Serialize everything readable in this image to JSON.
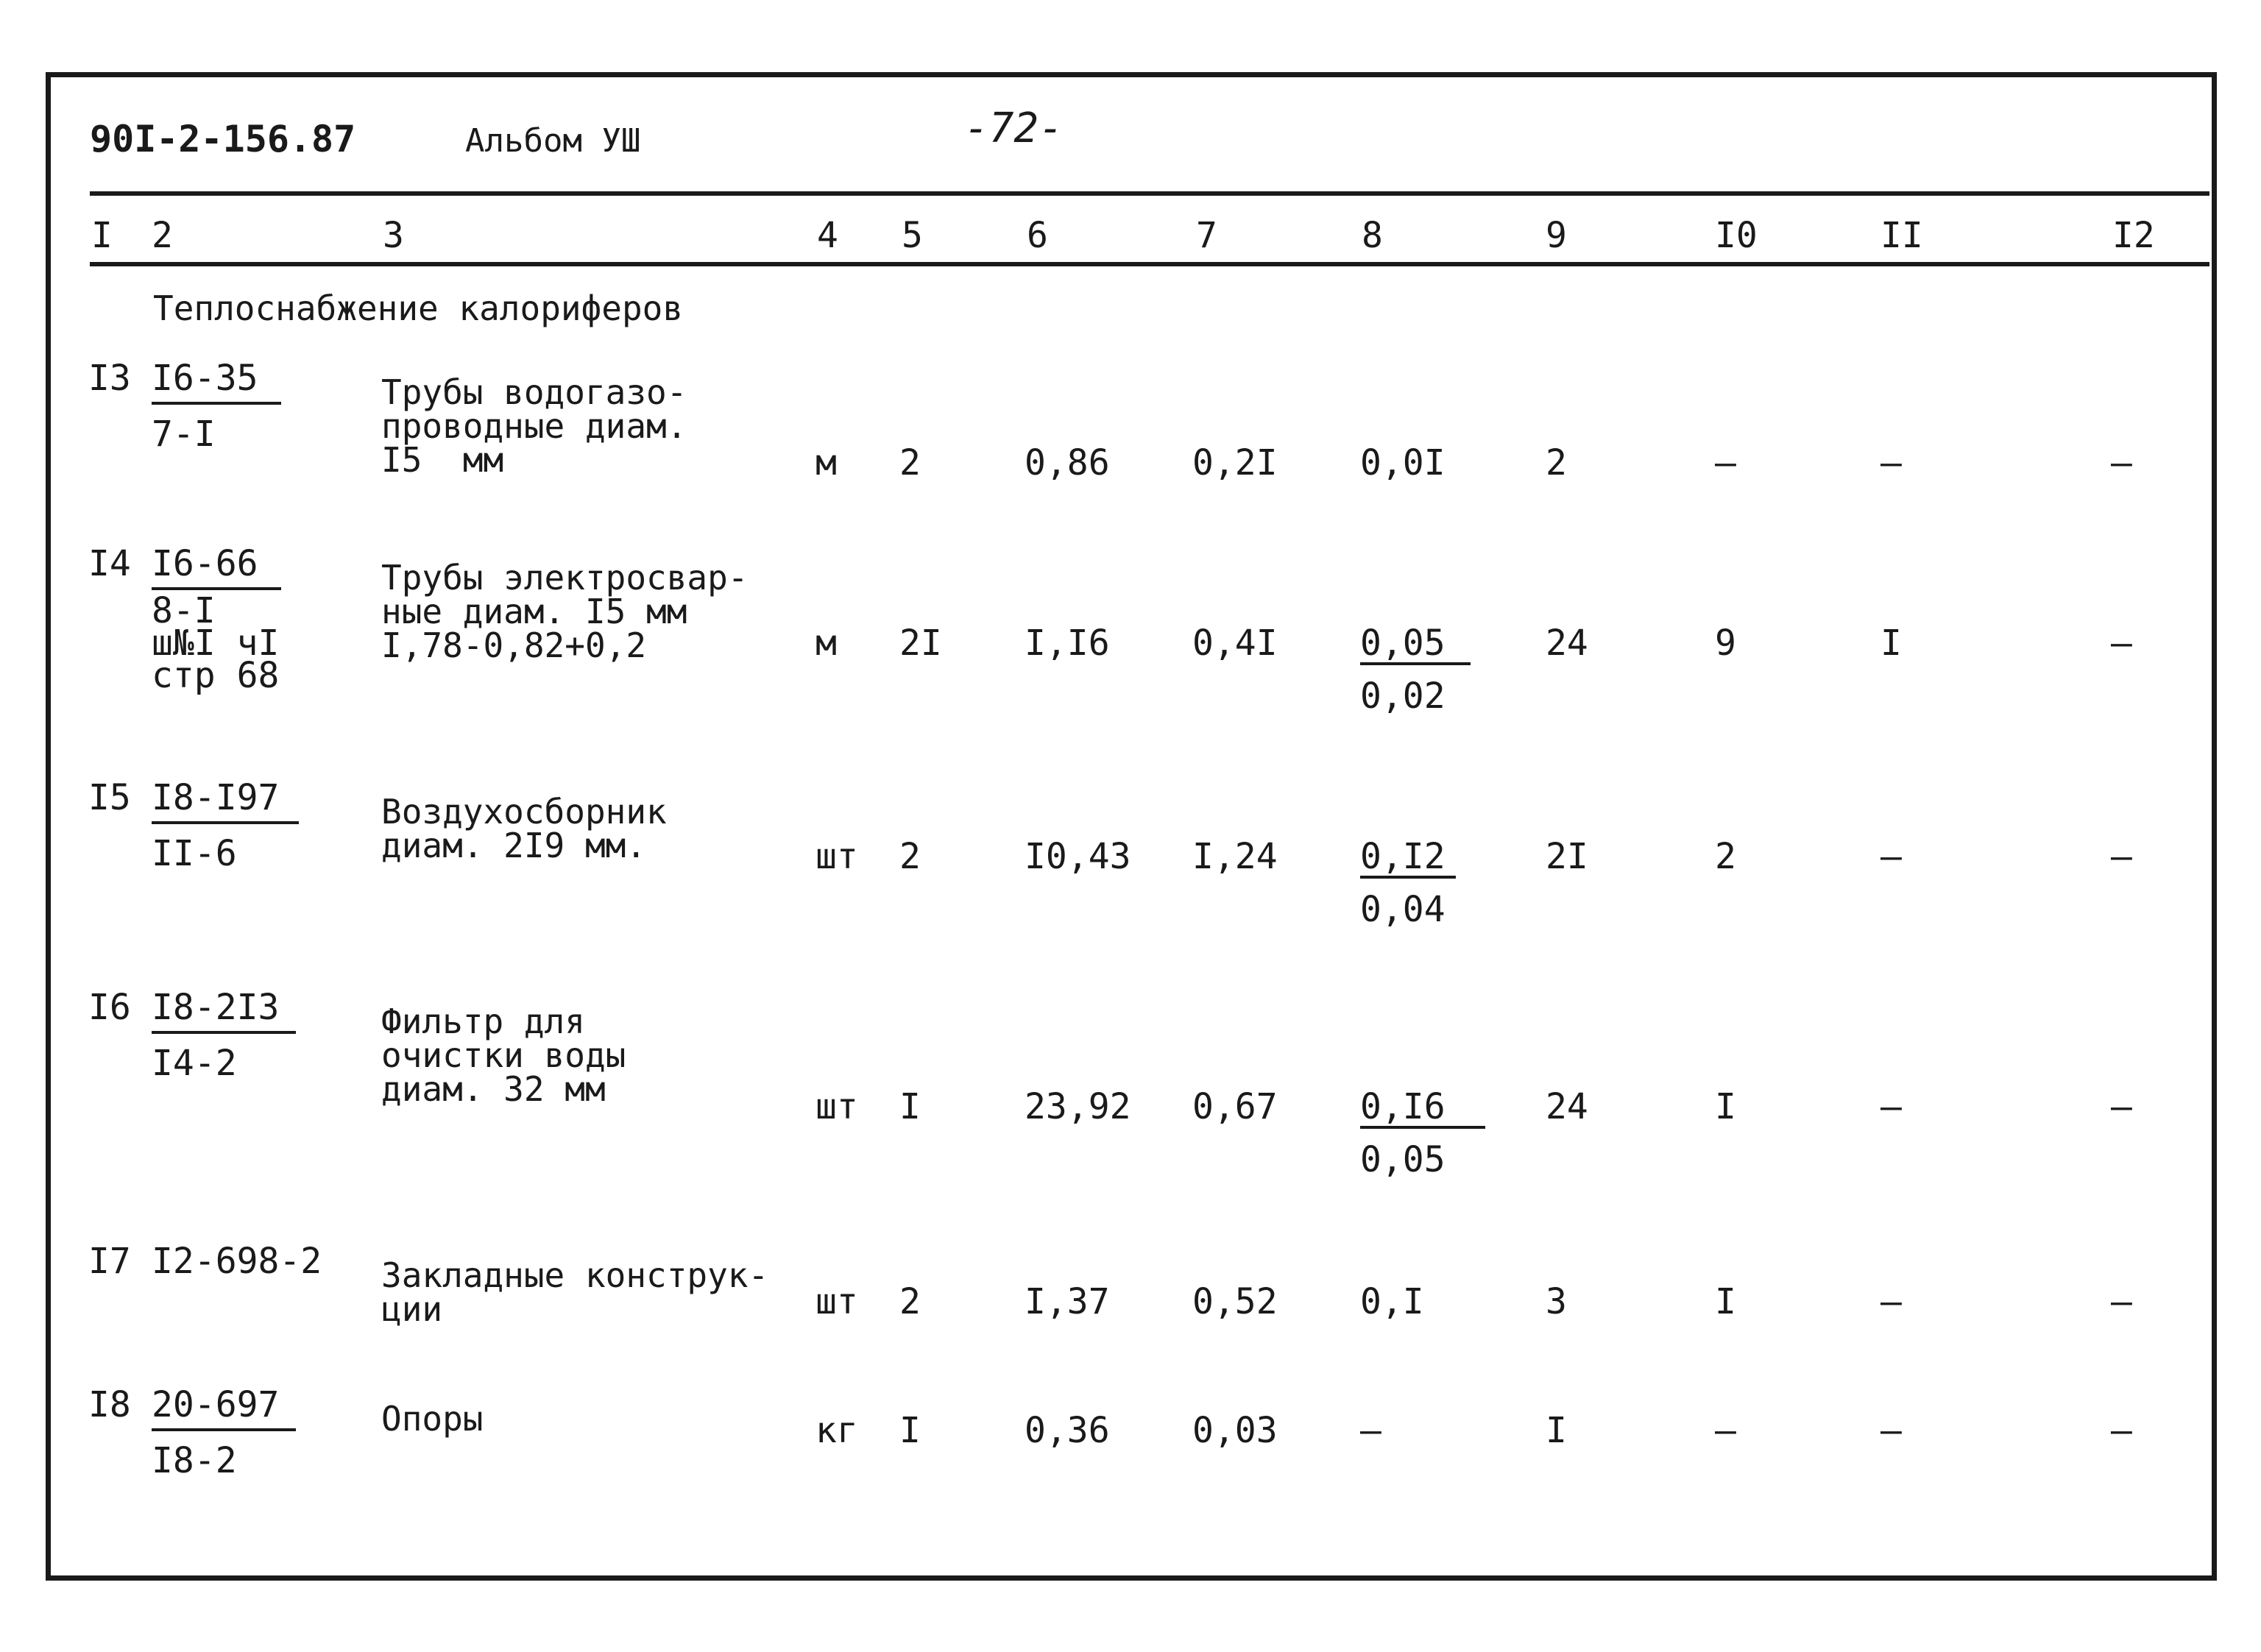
{
  "header": {
    "doc_code": "90I-2-156.87",
    "album": "Альбом УШ",
    "page": "-72-"
  },
  "columns": [
    "I",
    "2",
    "3",
    "4",
    "5",
    "6",
    "7",
    "8",
    "9",
    "I0",
    "II",
    "I2"
  ],
  "section_title": "Теплоснабжение калориферов",
  "rows": [
    {
      "num": "I3",
      "ref_top": "I6-35",
      "ref_bottom": [
        "7-I"
      ],
      "desc": "Трубы водогазо-\nпроводные диам.\nI5  мм",
      "unit": "м",
      "c5": "2",
      "c6": "0,86",
      "c7": "0,2I",
      "c8_top": "0,0I",
      "c8_bottom": "",
      "c9": "2",
      "c10": "–",
      "c11": "–",
      "c12": "–"
    },
    {
      "num": "I4",
      "ref_top": "I6-66",
      "ref_bottom": [
        "8-I",
        "ш№I чI",
        "стр 68"
      ],
      "desc": "Трубы электросвар-\nные диам. I5 мм\nI,78-0,82+0,2",
      "unit": "м",
      "c5": "2I",
      "c6": "I,I6",
      "c7": "0,4I",
      "c8_top": "0,05",
      "c8_bottom": "0,02",
      "c9": "24",
      "c10": "9",
      "c11": "I",
      "c12": "–"
    },
    {
      "num": "I5",
      "ref_top": "I8-I97",
      "ref_bottom": [
        "II-6"
      ],
      "desc": "Воздухосборник\nдиам. 2I9 мм.",
      "unit": "шт",
      "c5": "2",
      "c6": "I0,43",
      "c7": "I,24",
      "c8_top": "0,I2",
      "c8_bottom": "0,04",
      "c9": "2I",
      "c10": "2",
      "c11": "–",
      "c12": "–"
    },
    {
      "num": "I6",
      "ref_top": "I8-2I3",
      "ref_bottom": [
        "I4-2"
      ],
      "desc": "Фильтр для\nочистки воды\nдиам. 32 мм",
      "unit": "шт",
      "c5": "I",
      "c6": "23,92",
      "c7": "0,67",
      "c8_top": "0,I6",
      "c8_bottom": "0,05",
      "c9": "24",
      "c10": "I",
      "c11": "–",
      "c12": "–"
    },
    {
      "num": "I7",
      "ref_top": "I2-698-2",
      "ref_bottom": [],
      "desc": "Закладные конструк-\nции",
      "unit": "шт",
      "c5": "2",
      "c6": "I,37",
      "c7": "0,52",
      "c8_top": "0,I",
      "c8_bottom": "",
      "c9": "3",
      "c10": "I",
      "c11": "–",
      "c12": "–"
    },
    {
      "num": "I8",
      "ref_top": "20-697",
      "ref_bottom": [
        "I8-2"
      ],
      "desc": "Опоры",
      "unit": "кг",
      "c5": "I",
      "c6": "0,36",
      "c7": "0,03",
      "c8_top": "–",
      "c8_bottom": "",
      "c9": "I",
      "c10": "–",
      "c11": "–",
      "c12": "–"
    }
  ]
}
